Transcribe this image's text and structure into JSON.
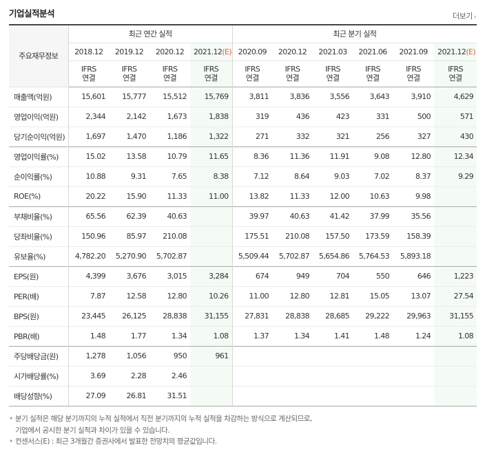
{
  "header": {
    "title": "기업실적분석",
    "more_label": "더보기"
  },
  "table": {
    "label_header": "주요재무정보",
    "group_annual": "최근 연간 실적",
    "group_quarter": "최근 분기 실적",
    "periods": [
      "2018.12",
      "2019.12",
      "2020.12",
      "2021.12(E)",
      "2020.09",
      "2020.12",
      "2021.03",
      "2021.06",
      "2021.09",
      "2021.12(E)"
    ],
    "ifrs_top": "IFRS",
    "ifrs_bottom": "연결",
    "rows": [
      {
        "label": "매출액(억원)",
        "values": [
          "15,601",
          "15,777",
          "15,512",
          "15,769",
          "3,811",
          "3,836",
          "3,556",
          "3,643",
          "3,910",
          "4,629"
        ]
      },
      {
        "label": "영업이익(억원)",
        "values": [
          "2,344",
          "2,142",
          "1,673",
          "1,838",
          "319",
          "436",
          "423",
          "331",
          "500",
          "571"
        ]
      },
      {
        "label": "당기순이익(억원)",
        "values": [
          "1,697",
          "1,470",
          "1,186",
          "1,322",
          "271",
          "332",
          "321",
          "256",
          "327",
          "430"
        ]
      },
      {
        "label": "영업이익률(%)",
        "values": [
          "15.02",
          "13.58",
          "10.79",
          "11.65",
          "8.36",
          "11.36",
          "11.91",
          "9.08",
          "12.80",
          "12.34"
        ]
      },
      {
        "label": "순이익률(%)",
        "values": [
          "10.88",
          "9.31",
          "7.65",
          "8.38",
          "7.12",
          "8.64",
          "9.03",
          "7.02",
          "8.37",
          "9.29"
        ]
      },
      {
        "label": "ROE(%)",
        "values": [
          "20.22",
          "15.90",
          "11.33",
          "11.00",
          "13.82",
          "11.33",
          "12.00",
          "10.63",
          "9.98",
          ""
        ]
      },
      {
        "label": "부채비율(%)",
        "values": [
          "65.56",
          "62.39",
          "40.63",
          "",
          "39.97",
          "40.63",
          "41.42",
          "37.99",
          "35.56",
          ""
        ]
      },
      {
        "label": "당좌비율(%)",
        "values": [
          "150.96",
          "85.97",
          "210.08",
          "",
          "175.51",
          "210.08",
          "157.50",
          "173.59",
          "158.39",
          ""
        ]
      },
      {
        "label": "유보율(%)",
        "values": [
          "4,782.20",
          "5,270.90",
          "5,702.87",
          "",
          "5,509.44",
          "5,702.87",
          "5,654.86",
          "5,764.53",
          "5,893.18",
          ""
        ]
      },
      {
        "label": "EPS(원)",
        "values": [
          "4,399",
          "3,676",
          "3,015",
          "3,284",
          "674",
          "949",
          "704",
          "550",
          "646",
          "1,223"
        ]
      },
      {
        "label": "PER(배)",
        "values": [
          "7.87",
          "12.58",
          "12.80",
          "10.26",
          "11.00",
          "12.80",
          "12.81",
          "15.05",
          "13.07",
          "27.54"
        ]
      },
      {
        "label": "BPS(원)",
        "values": [
          "23,445",
          "26,125",
          "28,838",
          "31,155",
          "27,831",
          "28,838",
          "28,685",
          "29,222",
          "29,963",
          "31,155"
        ]
      },
      {
        "label": "PBR(배)",
        "values": [
          "1.48",
          "1.77",
          "1.34",
          "1.08",
          "1.37",
          "1.34",
          "1.41",
          "1.48",
          "1.24",
          "1.08"
        ]
      },
      {
        "label": "주당배당금(원)",
        "values": [
          "1,278",
          "1,056",
          "950",
          "961",
          "",
          "",
          "",
          "",
          "",
          ""
        ]
      },
      {
        "label": "시가배당률(%)",
        "values": [
          "3.69",
          "2.28",
          "2.46",
          "",
          "",
          "",
          "",
          "",
          "",
          ""
        ]
      },
      {
        "label": "배당성향(%)",
        "values": [
          "27.09",
          "26.81",
          "31.51",
          "",
          "",
          "",
          "",
          "",
          "",
          ""
        ]
      }
    ]
  },
  "notes": {
    "line1": "분기 실적은 해당 분기까지의 누적 실적에서 직전 분기까지의 누적 실적을 차감하는 방식으로 계산되므로,",
    "line2": "기업에서 공시한 분기 실적과 차이가 있을 수 있습니다.",
    "line3": "컨센서스(E) : 최근 3개월간 증권사에서 발표한 전망치의 평균값입니다."
  },
  "colors": {
    "ifrs": "#e8612c",
    "estimate_bg": "#f4fbf5",
    "label_bg": "#f6f6f6"
  }
}
